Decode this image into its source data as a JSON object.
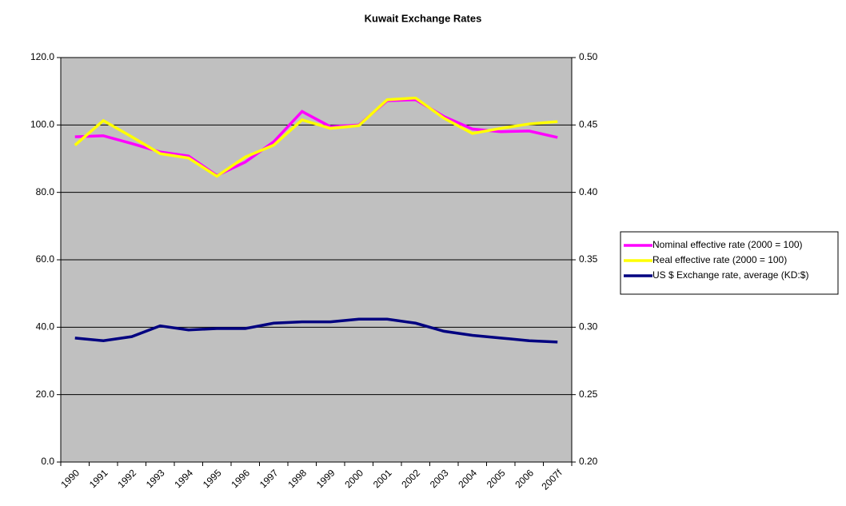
{
  "chart_data": {
    "type": "line",
    "title": "Kuwait Exchange Rates",
    "categories": [
      "1990",
      "1991",
      "1992",
      "1993",
      "1994",
      "1995",
      "1996",
      "1997",
      "1998",
      "1999",
      "2000",
      "2001",
      "2002",
      "2003",
      "2004",
      "2005",
      "2006",
      "2007f"
    ],
    "series": [
      {
        "name": "Nominal effective rate (2000 = 100)",
        "color": "#ff00ff",
        "values": [
          96.5,
          96.8,
          94.5,
          92,
          90.8,
          85,
          89,
          95,
          104,
          99.5,
          100,
          107.2,
          107.5,
          102.5,
          98.8,
          98,
          98.2,
          96.3
        ]
      },
      {
        "name": "Real effective rate (2000 = 100)",
        "color": "#ffff00",
        "values": [
          94,
          101.3,
          96.5,
          91.5,
          90.2,
          84.8,
          90.5,
          94,
          101.5,
          99,
          99.8,
          107.5,
          108,
          102,
          97.5,
          99,
          100.3,
          101
        ]
      },
      {
        "name": "US $ Exchange rate, average (KD:$)",
        "color": "#000080",
        "axis": "y2",
        "values": [
          0.292,
          0.29,
          0.293,
          0.301,
          0.298,
          0.299,
          0.299,
          0.303,
          0.304,
          0.304,
          0.306,
          0.306,
          0.303,
          0.297,
          0.294,
          0.292,
          0.29,
          0.289
        ]
      }
    ],
    "ylim": [
      0,
      120
    ],
    "yticks": [
      {
        "value": 0,
        "label": "0.0"
      },
      {
        "value": 20,
        "label": "20.0"
      },
      {
        "value": 40,
        "label": "40.0"
      },
      {
        "value": 60,
        "label": "60.0"
      },
      {
        "value": 80,
        "label": "80.0"
      },
      {
        "value": 100,
        "label": "100.0"
      },
      {
        "value": 120,
        "label": "120.0"
      }
    ],
    "y2lim": [
      0.2,
      0.5
    ],
    "y2ticks": [
      {
        "value": 0.2,
        "label": "0.20"
      },
      {
        "value": 0.25,
        "label": "0.25"
      },
      {
        "value": 0.3,
        "label": "0.30"
      },
      {
        "value": 0.35,
        "label": "0.35"
      },
      {
        "value": 0.4,
        "label": "0.40"
      },
      {
        "value": 0.45,
        "label": "0.45"
      },
      {
        "value": 0.5,
        "label": "0.50"
      }
    ],
    "grid": true,
    "legend": "right"
  }
}
